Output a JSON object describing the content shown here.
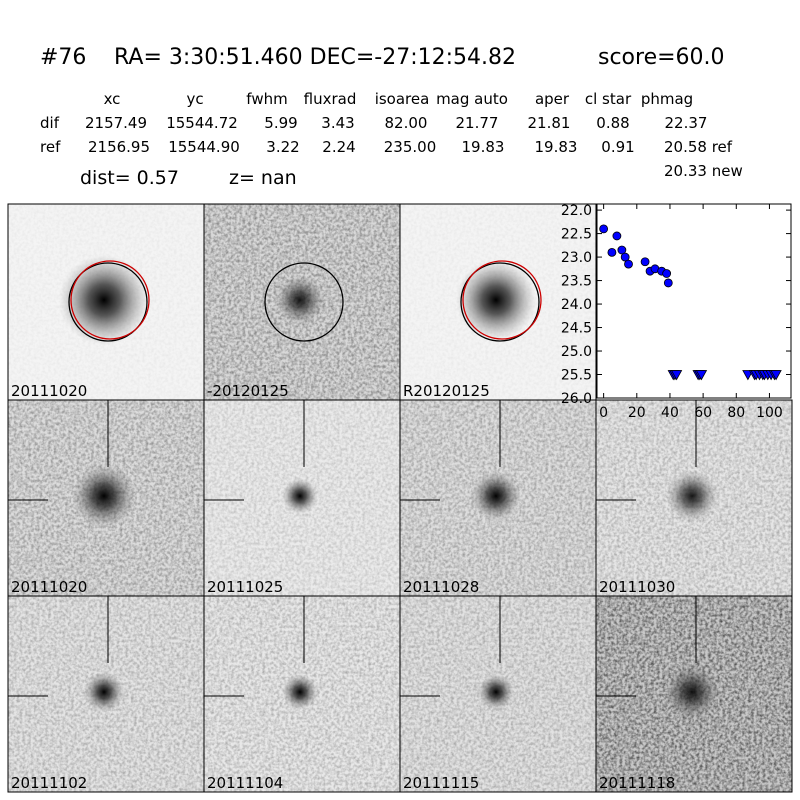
{
  "header": {
    "id": "#76",
    "coords": "RA= 3:30:51.460 DEC=-27:12:54.82",
    "score": "score=60.0"
  },
  "table": {
    "columns": [
      "xc",
      "yc",
      "fwhm",
      "fluxrad",
      "isoarea",
      "mag auto",
      "aper",
      "cl star",
      "phmag"
    ],
    "rows": [
      [
        "dif",
        "2157.49",
        "15544.72",
        "5.99",
        "3.43",
        "82.00",
        "21.77",
        "21.81",
        "0.88",
        "22.37"
      ],
      [
        "ref",
        "2156.95",
        "15544.90",
        "3.22",
        "2.24",
        "235.00",
        "19.83",
        "19.83",
        "0.91",
        "20.58 ref"
      ]
    ],
    "extra": "20.33 new"
  },
  "dist": "dist=  0.57",
  "z": "z=   nan",
  "stamps": [
    {
      "label": "20111020"
    },
    {
      "label": "-20120125"
    },
    {
      "label": "R20120125"
    },
    {
      "label": "20111020",
      "color": "#ff0000"
    },
    {
      "label": "20111025"
    },
    {
      "label": "20111028"
    },
    {
      "label": "20111030"
    },
    {
      "label": "20111102"
    },
    {
      "label": "20111104"
    },
    {
      "label": "20111115"
    },
    {
      "label": "20111118"
    }
  ],
  "chart_data": {
    "type": "scatter",
    "xlim": [
      -4,
      113
    ],
    "ylim": [
      26.0,
      21.87
    ],
    "xticks": [
      0,
      20,
      40,
      60,
      80,
      100
    ],
    "yticks": [
      {
        "value": 22,
        "label": "22.0"
      },
      {
        "value": 22.5,
        "label": "22.5"
      },
      {
        "value": 23,
        "label": "23.0"
      },
      {
        "value": 23.5,
        "label": "23.5"
      },
      {
        "value": 24,
        "label": "24.0"
      },
      {
        "value": 24.5,
        "label": "24.5"
      },
      {
        "value": 25,
        "label": "25.0"
      },
      {
        "value": 25.5,
        "label": "25.5"
      },
      {
        "value": 26,
        "label": "26.0"
      }
    ],
    "series": [
      {
        "marker": "circle",
        "color": "#0000ff",
        "x": [
          0,
          5,
          8,
          11,
          13,
          15,
          25,
          28,
          31,
          35,
          38,
          39
        ],
        "values": [
          22.4,
          22.9,
          22.55,
          22.85,
          23.0,
          23.15,
          23.1,
          23.3,
          23.25,
          23.3,
          23.35,
          23.55
        ]
      },
      {
        "marker": "triangle-down",
        "color": "#0000ff",
        "x": [
          42,
          43,
          44,
          57,
          58,
          59,
          87,
          91,
          92,
          94,
          96,
          97,
          99,
          101,
          103,
          104
        ],
        "values": [
          25.5,
          25.5,
          25.5,
          25.5,
          25.5,
          25.5,
          25.5,
          25.5,
          25.5,
          25.5,
          25.5,
          25.5,
          25.5,
          25.5,
          25.5,
          25.5
        ]
      }
    ]
  }
}
